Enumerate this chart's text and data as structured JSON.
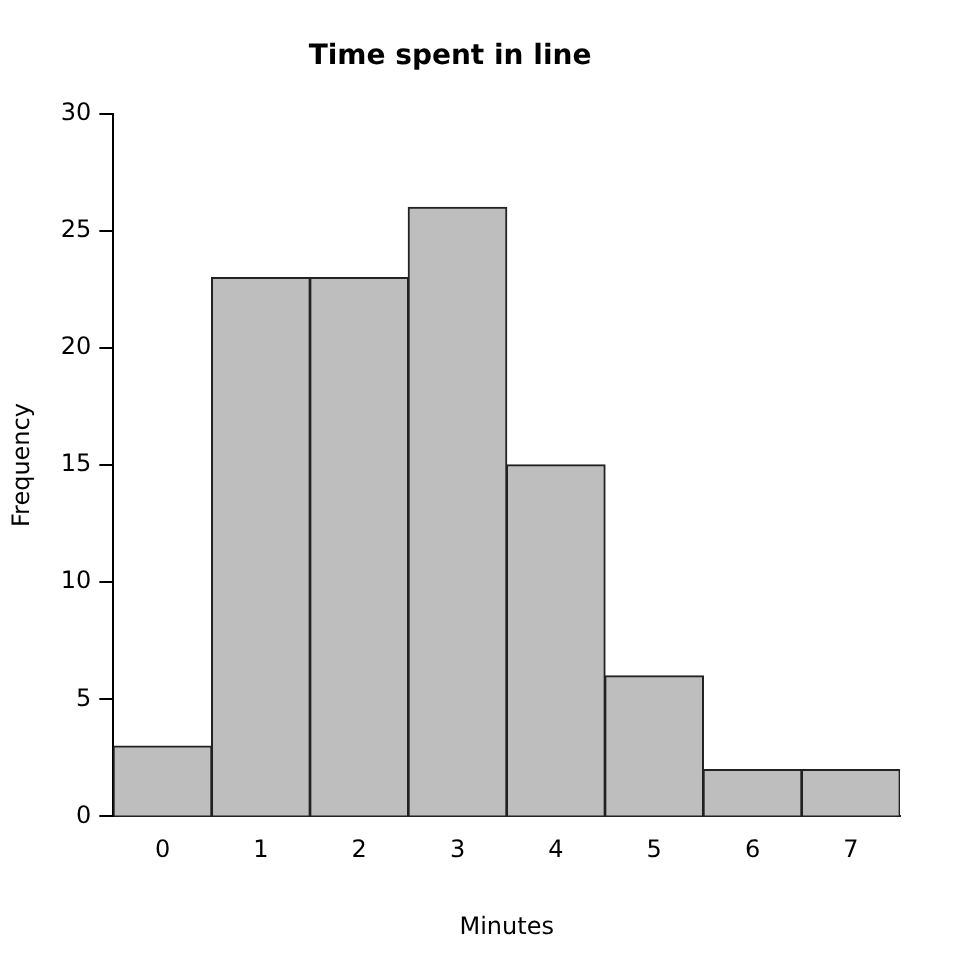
{
  "chart_data": {
    "type": "histogram",
    "title": "Time spent in line",
    "xlabel": "Minutes",
    "ylabel": "Frequency",
    "bins": [
      -0.5,
      0.5,
      1.5,
      2.5,
      3.5,
      4.5,
      5.5,
      6.5,
      7.5
    ],
    "values": [
      3,
      23,
      23,
      26,
      15,
      6,
      2,
      2
    ],
    "color": "#bebebe",
    "xlim": [
      -0.5,
      7.5
    ],
    "xticks": [
      0,
      1,
      2,
      3,
      4,
      5,
      6,
      7
    ],
    "ylim": [
      0,
      30
    ],
    "yticks": [
      0,
      5,
      10,
      15,
      20,
      25,
      30
    ],
    "grid": false,
    "legend": false
  }
}
